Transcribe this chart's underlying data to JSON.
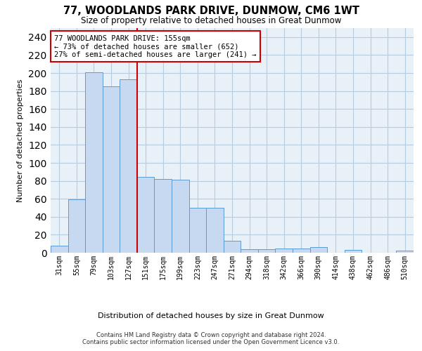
{
  "title": "77, WOODLANDS PARK DRIVE, DUNMOW, CM6 1WT",
  "subtitle": "Size of property relative to detached houses in Great Dunmow",
  "xlabel": "Distribution of detached houses by size in Great Dunmow",
  "ylabel": "Number of detached properties",
  "bar_labels": [
    "31sqm",
    "55sqm",
    "79sqm",
    "103sqm",
    "127sqm",
    "151sqm",
    "175sqm",
    "199sqm",
    "223sqm",
    "247sqm",
    "271sqm",
    "294sqm",
    "318sqm",
    "342sqm",
    "366sqm",
    "390sqm",
    "414sqm",
    "438sqm",
    "462sqm",
    "486sqm",
    "510sqm"
  ],
  "bar_values": [
    8,
    59,
    201,
    185,
    193,
    84,
    82,
    81,
    50,
    50,
    13,
    4,
    4,
    5,
    5,
    6,
    0,
    3,
    0,
    0,
    2
  ],
  "bar_color": "#c6d9f0",
  "bar_edge_color": "#5b9bd5",
  "vline_color": "#cc0000",
  "annotation_text": "77 WOODLANDS PARK DRIVE: 155sqm\n← 73% of detached houses are smaller (652)\n27% of semi-detached houses are larger (241) →",
  "annotation_box_color": "#ffffff",
  "annotation_box_edge": "#cc0000",
  "ylim": [
    0,
    250
  ],
  "yticks": [
    0,
    20,
    40,
    60,
    80,
    100,
    120,
    140,
    160,
    180,
    200,
    220,
    240
  ],
  "footer": "Contains HM Land Registry data © Crown copyright and database right 2024.\nContains public sector information licensed under the Open Government Licence v3.0.",
  "background_color": "#ffffff",
  "axes_bg_color": "#e8f0f8",
  "grid_color": "#b8cce0"
}
